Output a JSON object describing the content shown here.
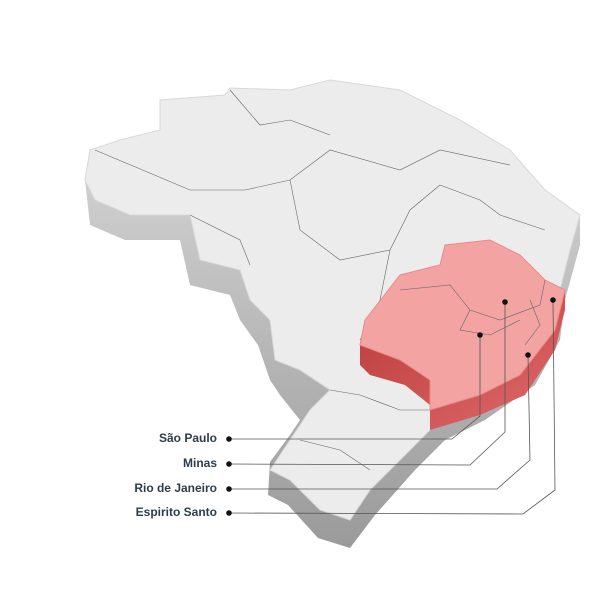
{
  "labels": [
    "São Paulo",
    "Minas",
    "Rio de Janeiro",
    "Espirito Santo"
  ]
}
